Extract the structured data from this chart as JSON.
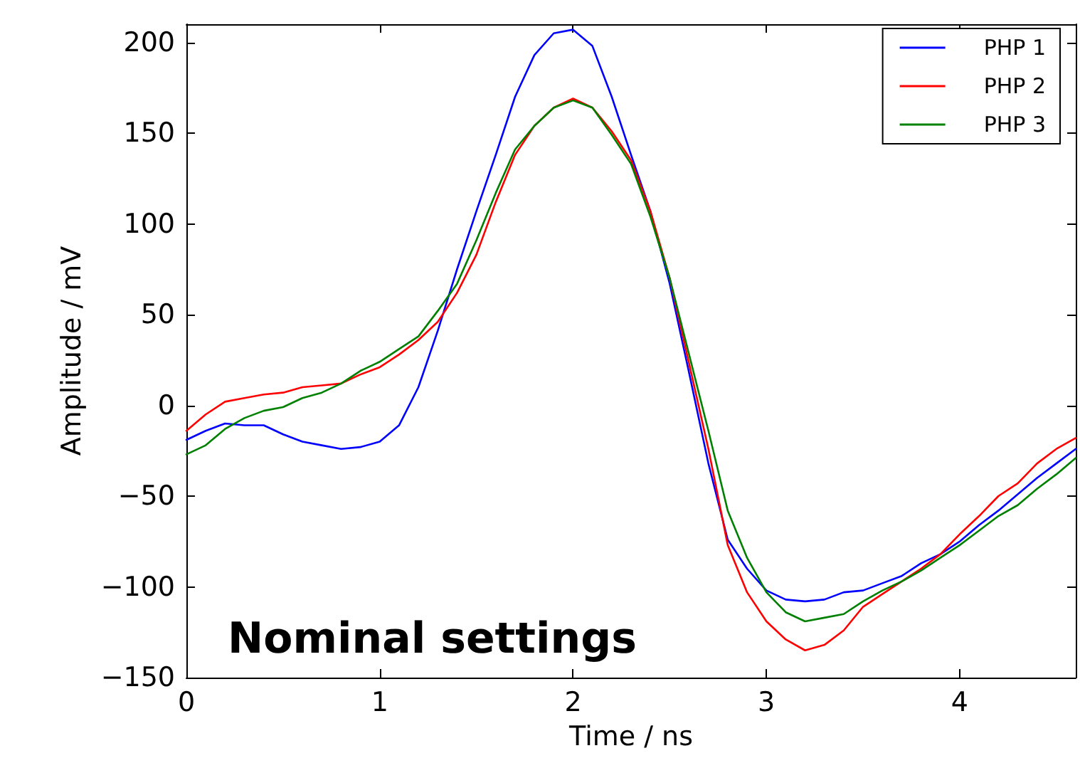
{
  "chart_data": {
    "type": "line",
    "xlabel": "Time / ns",
    "ylabel": "Amplitude / mV",
    "annotations": [
      "Nominal settings"
    ],
    "x": [
      0,
      0.1,
      0.2,
      0.3,
      0.4,
      0.5,
      0.6,
      0.7,
      0.8,
      0.9,
      1,
      1.1,
      1.2,
      1.3,
      1.4,
      1.5,
      1.6,
      1.7,
      1.8,
      1.9,
      2,
      2.1,
      2.2,
      2.3,
      2.4,
      2.5,
      2.6,
      2.7,
      2.8,
      2.9,
      3,
      3.1,
      3.2,
      3.3,
      3.4,
      3.5,
      3.6,
      3.7,
      3.8,
      3.9,
      4,
      4.1,
      4.2,
      4.3,
      4.4,
      4.5,
      4.6
    ],
    "series": [
      {
        "name": "PHP 1",
        "color": "#0000ff",
        "values": [
          -19,
          -14,
          -10,
          -11,
          -11,
          -16,
          -20,
          -22,
          -24,
          -23,
          -20,
          -11,
          10,
          41,
          75,
          107,
          138,
          170,
          193,
          205,
          207,
          198,
          170,
          138,
          107,
          67,
          18,
          -32,
          -74,
          -90,
          -102,
          -107,
          -108,
          -107,
          -103,
          -102,
          -98,
          -94,
          -87,
          -82,
          -75,
          -66,
          -58,
          -49,
          -40,
          -32,
          -24
        ]
      },
      {
        "name": "PHP 2",
        "color": "#ff0000",
        "values": [
          -14,
          -5,
          2,
          4,
          6,
          7,
          10,
          11,
          12,
          17,
          21,
          28,
          36,
          46,
          62,
          83,
          112,
          138,
          154,
          164,
          169,
          164,
          151,
          135,
          107,
          70,
          23,
          -24,
          -77,
          -103,
          -119,
          -129,
          -135,
          -132,
          -124,
          -111,
          -104,
          -97,
          -90,
          -82,
          -71,
          -61,
          -50,
          -43,
          -32,
          -24,
          -18
        ]
      },
      {
        "name": "PHP 3",
        "color": "#008000",
        "values": [
          -27,
          -22,
          -13,
          -7,
          -3,
          -1,
          4,
          7,
          12,
          19,
          24,
          31,
          38,
          52,
          67,
          91,
          117,
          141,
          154,
          164,
          168,
          164,
          149,
          133,
          104,
          70,
          28,
          -14,
          -58,
          -84,
          -103,
          -114,
          -119,
          -117,
          -115,
          -108,
          -102,
          -97,
          -91,
          -84,
          -77,
          -69,
          -61,
          -55,
          -46,
          -38,
          -29
        ]
      }
    ],
    "xlim": [
      0,
      4.6
    ],
    "xticks": [
      0,
      1,
      2,
      3,
      4
    ],
    "ylim": [
      -150,
      210
    ],
    "yticks": [
      -150,
      -100,
      -50,
      0,
      50,
      100,
      150,
      200
    ],
    "grid": false,
    "legend": "top right",
    "marker": "none",
    "line_style": "solid"
  }
}
